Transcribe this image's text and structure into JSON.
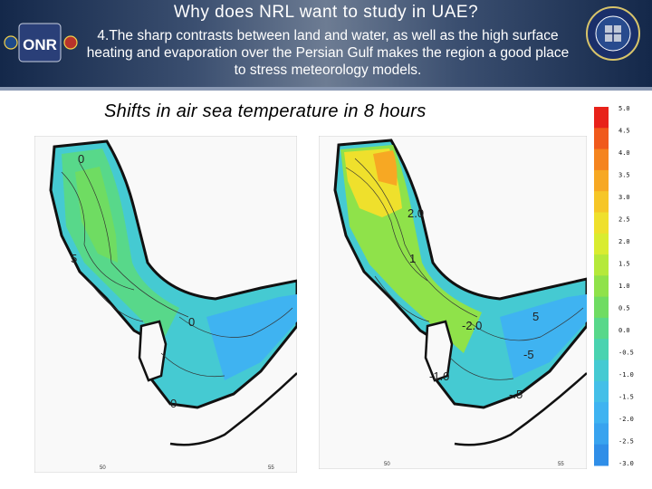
{
  "title": "Why does NRL want to study in UAE?",
  "subtitle": "4.The sharp contrasts between land and water, as well as the high surface heating and evaporation over the Persian Gulf makes the region a good place to stress meteorology models.",
  "logos": {
    "left": "ONR logo",
    "right": "NRL seal"
  },
  "caption": "Shifts in air sea temperature in 8 hours",
  "map_left": {
    "contour_labels": [
      "0",
      "0",
      "5",
      "0"
    ],
    "axis_ticks": [
      "50",
      "55"
    ]
  },
  "map_right": {
    "contour_labels": [
      "2.0",
      "5",
      "-2.0",
      "-5",
      "-.5",
      "-1.0",
      "1"
    ],
    "axis_ticks": [
      "50",
      "55"
    ]
  },
  "colorbar": {
    "ticks": [
      "5.0",
      "4.5",
      "4.0",
      "3.5",
      "3.0",
      "2.5",
      "2.0",
      "1.5",
      "1.0",
      "0.5",
      "0.0",
      "-0.5",
      "-1.0",
      "-1.5",
      "-2.0",
      "-2.5",
      "-3.0"
    ],
    "colors": [
      "#e8221a",
      "#f05a1c",
      "#f5841f",
      "#f7a823",
      "#f6c627",
      "#efe02c",
      "#d9ec30",
      "#b5e93a",
      "#8fe24a",
      "#6fdc62",
      "#58d88a",
      "#4ad3b0",
      "#45cad2",
      "#44bfe8",
      "#3fb3f1",
      "#38a3ef",
      "#2f8ee8"
    ]
  }
}
